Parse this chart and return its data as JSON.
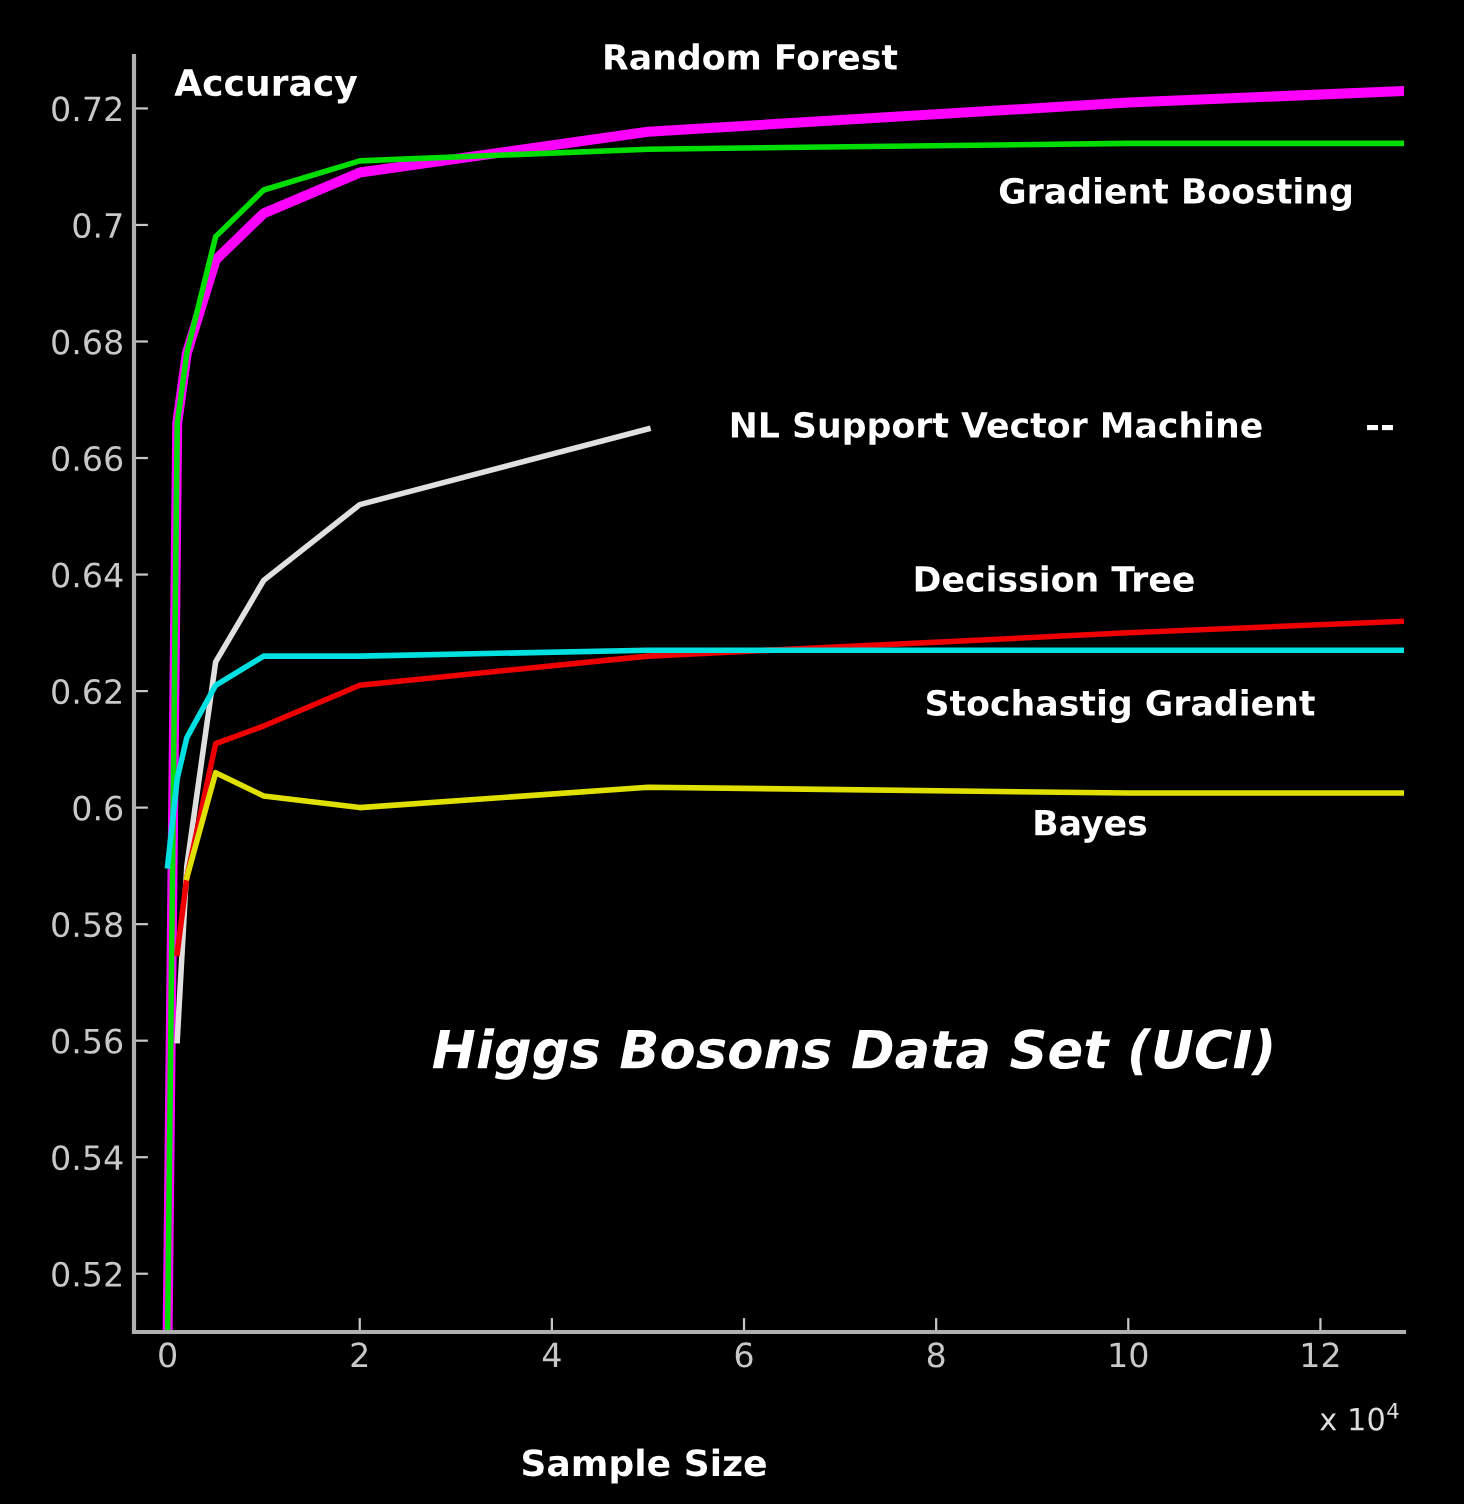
{
  "chart_data": {
    "type": "line",
    "title": "Higgs Bosons Data Set (UCI)",
    "xlabel": "Sample Size",
    "ylabel": "Accuracy",
    "x": [
      0,
      0.1,
      0.2,
      0.5,
      1,
      2,
      5,
      10,
      12.87
    ],
    "series": [
      {
        "name": "Random Forest",
        "color": "#ff00ff",
        "values": [
          0.51,
          0.666,
          0.678,
          0.694,
          0.702,
          0.709,
          0.716,
          0.721,
          0.723
        ]
      },
      {
        "name": "Gradient Boosting",
        "color": "#00dd00",
        "values": [
          0.51,
          0.666,
          0.678,
          0.698,
          0.706,
          0.711,
          0.713,
          0.714,
          0.714
        ]
      },
      {
        "name": "NL Support Vector Machine",
        "color": "#e0e0e0",
        "values": [
          null,
          0.56,
          0.59,
          0.625,
          0.639,
          0.652,
          0.665,
          null,
          null
        ]
      },
      {
        "name": "Decission Tree",
        "color": "#ee0000",
        "values": [
          null,
          0.575,
          0.588,
          0.611,
          0.614,
          0.621,
          0.626,
          0.63,
          0.632
        ]
      },
      {
        "name": "Stochastig Gradient",
        "color": "#00e0e0",
        "values": [
          0.59,
          0.605,
          0.612,
          0.621,
          0.626,
          0.626,
          0.627,
          0.627,
          0.627
        ]
      },
      {
        "name": "Bayes",
        "color": "#e0e000",
        "values": [
          null,
          null,
          0.588,
          0.606,
          0.602,
          0.6,
          0.6035,
          0.6025,
          0.6025
        ]
      }
    ],
    "annotations": [
      "--",
      "x 10$^{4}$"
    ],
    "xlim": [
      -0.35,
      12.87
    ],
    "ylim": [
      0.51,
      0.729
    ],
    "xticks": [
      0,
      2,
      4,
      6,
      8,
      10,
      12
    ],
    "yticks": [
      0.52,
      0.54,
      0.56,
      0.58,
      {
        "value": 0.6,
        "label": "0.6"
      },
      0.62,
      0.64,
      0.66,
      0.68,
      {
        "value": 0.7,
        "label": "0.7"
      },
      0.72
    ],
    "grid": false,
    "legend": false,
    "marker": "none",
    "line_style": "solid"
  }
}
